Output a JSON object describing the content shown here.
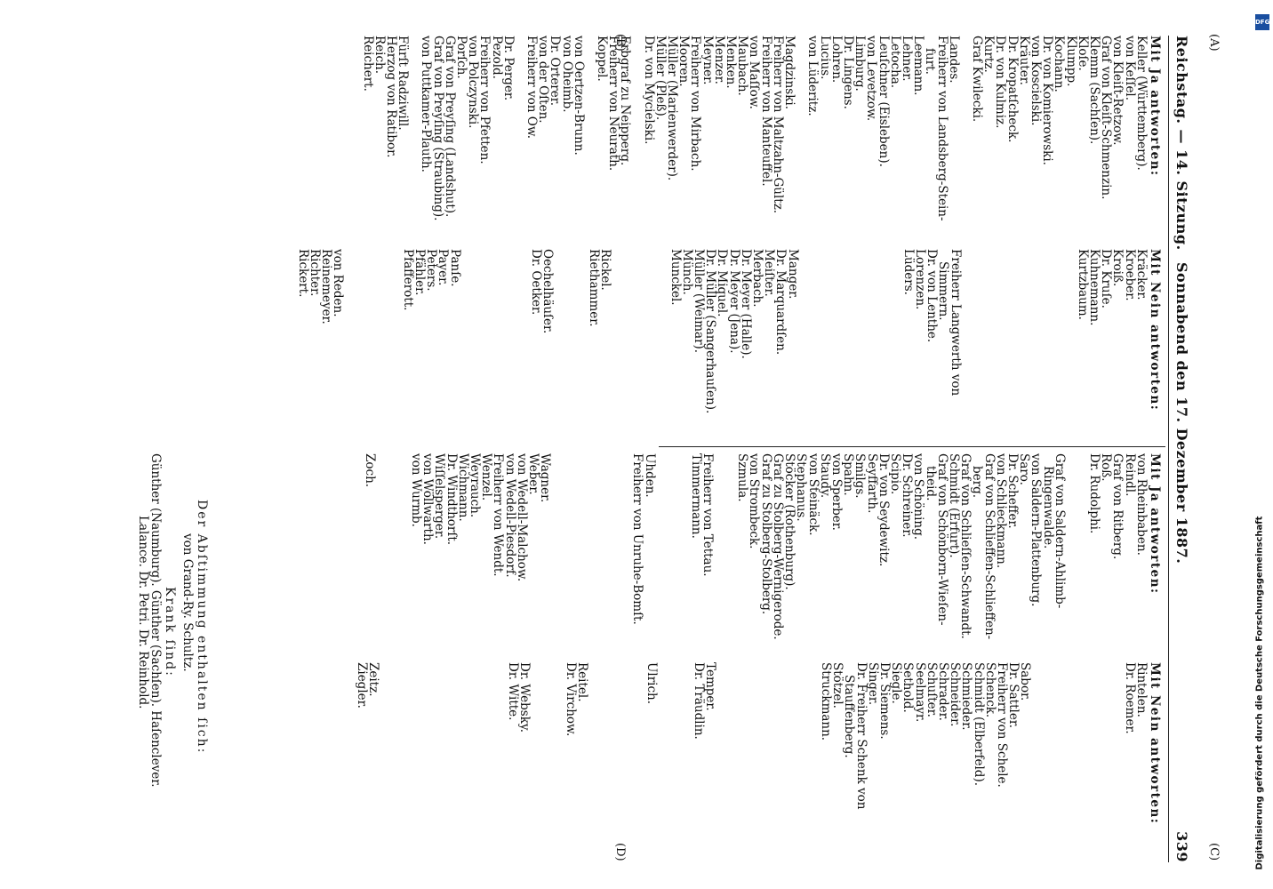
{
  "header": {
    "left": "Reichstag. — 14. Sitzung.",
    "center": "Sonnabend den 17. Dezember 1887.",
    "page_number": "339"
  },
  "markers": {
    "a": "(A)",
    "b": "(B)",
    "c": "(C)",
    "d": "(D)"
  },
  "col1": {
    "heading": "Mit Ja antworten:",
    "names": [
      "Keller (Württemberg).",
      "von Keſſel.",
      "von Kleiſt-Retzow.",
      "Graf von Kleiſt-Schmenzin.",
      "Klemm (Sachſen).",
      "Kloſe.",
      "Klumpp.",
      "Kochann.",
      "Dr. von Komierowski.",
      "von Koscielski.",
      "Kräuter.",
      "Dr. Kropatſcheck.",
      "Dr. von Kulmiz.",
      "Kurtz.",
      "Graf Kwilecki.",
      "",
      "Landes.",
      "Freiherr von Landsberg-Stein-",
      "   furt.",
      "Leemann.",
      "Lehner.",
      "Letocha.",
      "Leuſchner (Eisleben).",
      "von Levetzow.",
      "Limburg.",
      "Dr. Lingens.",
      "Lohren.",
      "Lucius.",
      "von Lüderitz.",
      "",
      "Magdzinski.",
      "Freiherr von Maltzahn-Gültz.",
      "Freiherr von Manteuffel.",
      "von Maſſow.",
      "Maubach.",
      "Menken.",
      "Menzer.",
      "Meyner.",
      "Freiherr von Mirbach.",
      "Mooren.",
      "Müller (Marienwerder).",
      "Müller (Pleß).",
      "Dr. von Mycielski.",
      "",
      "Erbgraf zu Neipperg.",
      "Freiherr von Neurath.",
      "Koppel.",
      "",
      "von Oertzen-Brunn.",
      "von Oheimb.",
      "Dr. Orterer.",
      "von der Oſten.",
      "Freiherr von Ow.",
      "",
      "Dr. Perger.",
      "Pezold.",
      "Freiherr von Pfetten.",
      "von Polczynski.",
      "Porſch.",
      "Graf von Preyſing (Landshut).",
      "Graf von Preyſing (Straubing).",
      "von Puttkamer-Plauth.",
      "",
      "Fürſt Radziwill.",
      "Herzog von Ratibor.",
      "Reich.",
      "Reichert."
    ]
  },
  "col2": {
    "heading": "Mit Nein antworten:",
    "names": [
      "Kräcker.",
      "Kroeber.",
      "Kroiß.",
      "Dr. Kruſe.",
      "Kuhnemann.",
      "Kurtzbaum.",
      "",
      "",
      "",
      "",
      "",
      "",
      "",
      "",
      "",
      "",
      "Freiherr Langwerth von",
      "   Simmern.",
      "Dr. von Lenthe.",
      "Lorenzen.",
      "Lüders.",
      "",
      "",
      "",
      "",
      "",
      "",
      "",
      "",
      "",
      "Manger.",
      "Dr. Marquardſen.",
      "Meiſter.",
      "Merbach.",
      "Dr. Meyer (Halle).",
      "Dr. Meyer (Jena).",
      "Dr. Miquel.",
      "Dr. Müller (Sangerhauſen).",
      "Müller (Weimar).",
      "Münch.",
      "Munckel.",
      "",
      "",
      "",
      "",
      "",
      "Rickel.",
      "Riethammer.",
      "",
      "",
      "",
      "Oechelhäuſer.",
      "Dr. Oetker.",
      "",
      "",
      "",
      "",
      "",
      "",
      "Panſe.",
      "Payer.",
      "Peters.",
      "Pfähler.",
      "Pfafferott.",
      "",
      "",
      "",
      "",
      "",
      "von Reden.",
      "Reinemeyer.",
      "Richter.",
      "Rickert."
    ]
  },
  "col3": {
    "heading": "Mit Ja antworten:",
    "names": [
      "von Rheinbaben.",
      "Reindl.",
      "Graf von Ritberg.",
      "Roß.",
      "Dr. Rudolphi.",
      "",
      "",
      "Graf von Saldern-Ahlimb-",
      "   Ringenwalde.",
      "von Saldern-Plattenburg.",
      "Saro.",
      "Dr. Scheffer.",
      "von Schlieckmann.",
      "Graf von Schlieffen-Schlieffen-",
      "   berg.",
      "Graf von Schlieſſen-Schwandt.",
      "Schmidt (Erfurt).",
      "Graf von Schönborn-Wieſen-",
      "   theid.",
      "von Schöning.",
      "Dr. Schreiner.",
      "Scipio.",
      "Dr. von Seydewitz.",
      "Seyffarth.",
      "Smilgs.",
      "Spahn.",
      "von Sperber.",
      "Staudy.",
      "von Steinäck.",
      "Stephanus.",
      "Stöcker (Rothenburg).",
      "Graf zu Stolberg-Wernigerode.",
      "Graf zu Stolberg-Stolberg.",
      "von Strombeck.",
      "Szmula.",
      "",
      "",
      "Freiherr von Tettau.",
      "Timmermann.",
      "",
      "",
      "",
      "Uhden.",
      "Freiherr von Unruhe-Bomſt.",
      "",
      "",
      "",
      "",
      "",
      "",
      "",
      "Wagner.",
      "Weber.",
      "von Wedell-Malchow.",
      "von Wedell-Piesdorf.",
      "Freiherr von Wendt.",
      "Wenzel.",
      "Weyrauch.",
      "Wichmann.",
      "Dr. Windthorſt.",
      "Wiſſelsperger.",
      "von Wöllwarth.",
      "von Wurmb.",
      "",
      "",
      "",
      "Zoch."
    ]
  },
  "col4": {
    "heading": "Mit Nein antworten:",
    "names": [
      "Rintelen.",
      "Dr. Roemer.",
      "",
      "",
      "",
      "",
      "",
      "",
      "",
      "",
      "Sabor.",
      "Dr. Sattler.",
      "Freiherr von Schele.",
      "Schenck.",
      "Schmidt (Elberfeld).",
      "Schmieder.",
      "Schneider.",
      "Schrader.",
      "Schuſter.",
      "Seelmayr.",
      "Sethold.",
      "Siegle.",
      "Dr. Siemens.",
      "Singer.",
      "Dr. Freiherr Schenk von",
      "   Stauffenberg.",
      "Stötzel.",
      "Struckmann.",
      "",
      "",
      "",
      "",
      "",
      "",
      "",
      "",
      "",
      "Temper.",
      "Dr. Träudlin.",
      "",
      "",
      "",
      "Ulrich.",
      "",
      "",
      "",
      "",
      "",
      "Reitel.",
      "Dr. Virchow.",
      "",
      "",
      "",
      "Dr. Websky.",
      "Dr. Witte.",
      "",
      "",
      "",
      "",
      "",
      "",
      "",
      "",
      "",
      "",
      "",
      "Zeitz.",
      "Ziegler."
    ]
  },
  "footer": {
    "abstain_heading": "Der Abſtimmung enthalten ſich:",
    "abstain_names": "von Grand-Ry.   Schultz.",
    "sick_heading": "Krank ſind:",
    "sick_line1": "Günther (Naumburg).   Günther (Sachſen).   Haſenclever.",
    "sick_line2": "Lalance.   Dr. Petri.   Dr. Reinhold."
  },
  "watermark": {
    "badge": "DFG",
    "text": "Digitalisierung gefördert durch die Deutsche Forschungsgemeinschaft"
  }
}
